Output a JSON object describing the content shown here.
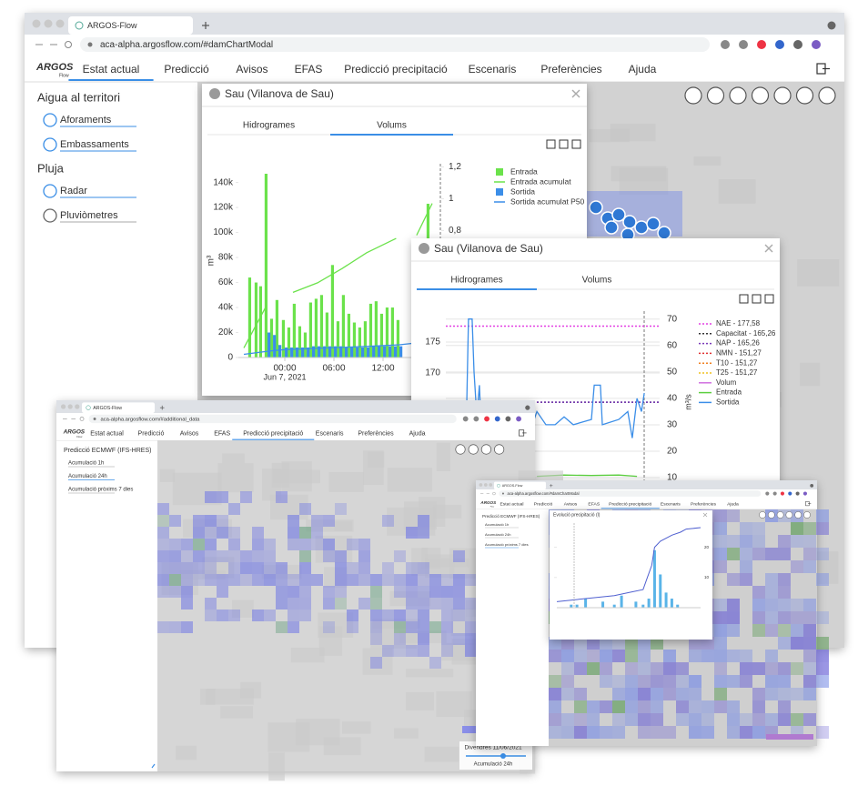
{
  "main": {
    "tab": "ARGOS-Flow",
    "url": "aca-alpha.argosflow.com/#damChartModal",
    "logo": "ARGOS",
    "logo_sub": "Flow"
  },
  "nav": [
    "Estat actual",
    "Predicció",
    "Avisos",
    "EFAS",
    "Predicció precipitació",
    "Escenaris",
    "Preferències",
    "Ajuda"
  ],
  "sidebar": {
    "groups": [
      {
        "title": "Aigua al territori",
        "items": [
          "Aforaments",
          "Embassaments"
        ]
      },
      {
        "title": "Pluja",
        "items": [
          "Radar",
          "Pluviòmetres"
        ]
      }
    ]
  },
  "modal_1": {
    "title": "Sau (Vilanova de Sau)",
    "tabs": [
      "Hidrogrames",
      "Volums"
    ]
  },
  "modal_2": {
    "title": "Sau (Vilanova de Sau)",
    "tabs": [
      "Hidrogrames",
      "Volums"
    ]
  },
  "window_3": {
    "tab": "ARGOS-Flow",
    "url": "aca-alpha.argosflow.com/#additional_data",
    "sidebar_title": "Predicció ECMWF (IFS-HRES)",
    "items": [
      "Acumulació 1h",
      "Acumulació 24h",
      "Acumulació pròxims 7 dies"
    ],
    "date": "Divendres 11/06/2021",
    "slider_label": "Acumulació 24h"
  },
  "window_4": {
    "tab": "ARGOS-Flow",
    "sidebar_title": "Predicció ECMWF (IFS-HRES)",
    "items": [
      "Acumulació 1h",
      "Acumulació 24h",
      "Acumulació pròxims 7 dies"
    ]
  },
  "chart_data": [
    {
      "type": "bar",
      "ylabel": "m³",
      "y2label": "m³/s",
      "date": "Jun 7, 2021",
      "xlim": [
        -5.67,
        19.11
      ],
      "xticks": [
        {
          "value": 0,
          "label": "00:00"
        },
        {
          "value": 6,
          "label": "06:00"
        },
        {
          "value": 12,
          "label": "12:00"
        }
      ],
      "ylim": [
        0,
        155000
      ],
      "yticks": [
        0,
        {
          "value": 20000,
          "label": "20k"
        },
        {
          "value": 40000,
          "label": "40k"
        },
        {
          "value": 60000,
          "label": "60k"
        },
        {
          "value": 80000,
          "label": "80k"
        },
        {
          "value": 100000,
          "label": "100k"
        },
        {
          "value": 120000,
          "label": "120k"
        },
        {
          "value": 140000,
          "label": "140k"
        }
      ],
      "y2lim": [
        0,
        1.22
      ],
      "y2ticks": [
        {
          "value": 0.8,
          "label": "0,8"
        },
        1,
        {
          "value": 1.2,
          "label": "1,2"
        }
      ],
      "x": [
        -4.11,
        -3.33,
        -2.78,
        -2.11,
        -1.44,
        -0.78,
        0,
        0.67,
        1.33,
        2,
        2.67,
        3.33,
        4,
        4.67,
        5.33,
        6,
        6.67,
        7.33,
        8,
        8.67,
        9.33,
        10,
        10.67,
        11.33,
        12,
        12.67,
        13.33,
        14,
        17.67
      ],
      "series": [
        {
          "name": "Entrada",
          "color": "#6be24b",
          "values": [
            64000,
            60000,
            57000,
            147000,
            31000,
            46000,
            30000,
            24000,
            43000,
            25000,
            20000,
            44000,
            47000,
            50000,
            36000,
            74000,
            29000,
            50000,
            35000,
            28000,
            24000,
            29000,
            43000,
            45000,
            35000,
            40000,
            40000,
            30000,
            123000
          ]
        },
        {
          "name": "Sortida",
          "color": "#3b8ee8",
          "values": [
            0,
            0,
            0,
            20000,
            18000,
            10000,
            8000,
            8000,
            8000,
            8000,
            8000,
            9000,
            9000,
            9000,
            9000,
            9000,
            9000,
            8000,
            8000,
            8000,
            8000,
            8000,
            9000,
            9000,
            9000,
            9000,
            9000,
            9000,
            0
          ]
        }
      ],
      "lines": [
        {
          "name": "Entrada acumulat",
          "color": "#6be24b",
          "axis": "y2",
          "x": [
            -5,
            -2.2,
            0.5,
            1,
            4,
            7,
            10,
            13.6,
            15,
            16.1,
            18
          ],
          "values": [
            0.06,
            0.33,
            null,
            0.41,
            0.47,
            0.56,
            0.66,
            0.75,
            null,
            0.77,
            0.97
          ]
        },
        {
          "name": "Sortida acumulat P50",
          "color": "#3b8ee8",
          "axis": "y2",
          "x": [
            -5,
            -2,
            0,
            5,
            10,
            14,
            17.6
          ],
          "values": [
            0.02,
            0.04,
            0.05,
            0.06,
            0.07,
            0.08,
            0.1
          ]
        }
      ]
    },
    {
      "type": "line",
      "grid": true,
      "xlim": [
        0,
        100
      ],
      "ylim": [
        146,
        180
      ],
      "yticks": [
        170,
        175
      ],
      "y2lim": [
        -6.5,
        73
      ],
      "y2ticks": [
        10,
        20,
        30,
        40,
        50,
        60,
        70
      ],
      "y2label": "m³/s",
      "thresholds": [
        {
          "name": "NAE - 177,58",
          "value": 177.58,
          "color": "#e33fe3"
        },
        {
          "name": "Capacitat - 165,26",
          "value": 165.26,
          "color": "#333333"
        },
        {
          "name": "NAP - 165,26",
          "value": 165.26,
          "color": "#7a3ab8"
        },
        {
          "name": "NMN - 151,27",
          "value": 151.27,
          "color": "#e03030"
        },
        {
          "name": "T10 - 151,27",
          "value": 151.27,
          "color": "#f08020"
        },
        {
          "name": "T25 - 151,27",
          "value": 151.27,
          "color": "#f0c020"
        }
      ],
      "series": [
        {
          "name": "Volum",
          "color": "#d070e0",
          "x": [],
          "values": []
        },
        {
          "name": "Entrada",
          "color": "#5cd040",
          "axis": "y2",
          "x": [
            42.6,
            55.3,
            68.1,
            80.9,
            89.4
          ],
          "values": [
            10.5,
            11,
            10.8,
            11,
            10.5
          ]
        },
        {
          "name": "Sortida",
          "color": "#3b8ee8",
          "axis": "y2",
          "x": [
            9.8,
            10.6,
            12.3,
            13.2,
            14.5,
            15.7,
            17,
            29.8,
            38.3,
            42.6,
            46.8,
            51.1,
            55.3,
            59.6,
            63.8,
            68.1,
            69.4,
            72.3,
            73.2,
            80.9,
            85.1,
            87.2,
            89.4,
            91.5,
            92.8
          ],
          "values": [
            38,
            70,
            70,
            50,
            33,
            45,
            20,
            0,
            25,
            35,
            30,
            30,
            33,
            30,
            31,
            32,
            45,
            45,
            30,
            32,
            35,
            25,
            40,
            35,
            42
          ]
        }
      ]
    },
    {
      "type": "bar",
      "title": "Evolució precipitació (l)",
      "xlim": [
        0,
        100
      ],
      "ylim": [
        0,
        28
      ],
      "yticks": [
        10,
        20
      ],
      "x": [
        10,
        14,
        20,
        32,
        40,
        45,
        55,
        60,
        64,
        68,
        72,
        76,
        80,
        84
      ],
      "values": [
        1,
        1,
        3,
        2,
        1,
        4,
        2,
        1,
        3,
        19,
        11,
        5,
        3,
        1
      ],
      "color": "#5ab4e8",
      "lines": [
        {
          "color": "#5060d0",
          "x": [
            0,
            20,
            40,
            50,
            60,
            63,
            66,
            68,
            72,
            80,
            86,
            90,
            100
          ],
          "values": [
            2,
            3,
            4,
            5,
            6,
            10,
            14,
            20,
            22,
            24,
            25,
            26,
            26.5
          ]
        }
      ]
    }
  ]
}
